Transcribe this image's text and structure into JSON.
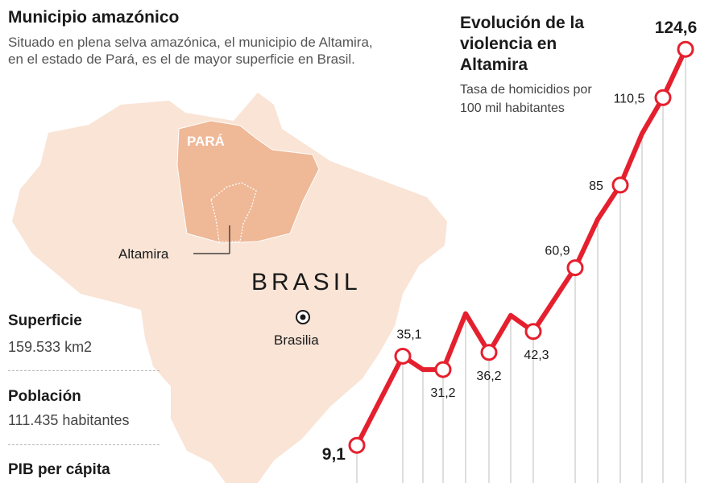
{
  "map_panel": {
    "title": "Municipio amazónico",
    "subtitle": "Situado en plena selva amazónica, el municipio de Altamira, en el estado de Pará, es el de mayor superficie en Brasil.",
    "state_label": "PARÁ",
    "municipality_label": "Altamira",
    "country_label": "BRASIL",
    "capital_label": "Brasilia",
    "colors": {
      "country": "#f9e4d6",
      "state": "#efb897",
      "border": "#ffffff"
    }
  },
  "stats": [
    {
      "label": "Superficie",
      "value": "159.533 km2"
    },
    {
      "label": "Población",
      "value": "111.435 habitantes"
    },
    {
      "label": "PIB per cápita",
      "value": ""
    }
  ],
  "chart_data": {
    "type": "line",
    "title": "Evolución de la violencia en Altamira",
    "subtitle": "Tasa de homicidios por 100 mil habitantes",
    "color": "#e5202e",
    "points": [
      {
        "label": "9,1",
        "value": 9.1,
        "marker": true
      },
      {
        "label": "35,1",
        "value": 35.1,
        "marker": true
      },
      {
        "label": "",
        "value": 31.2,
        "marker": false
      },
      {
        "label": "31,2",
        "value": 31.2,
        "marker": true
      },
      {
        "label": "",
        "value": 47.5,
        "marker": false
      },
      {
        "label": "36,2",
        "value": 36.2,
        "marker": true
      },
      {
        "label": "",
        "value": 47.0,
        "marker": false
      },
      {
        "label": "42,3",
        "value": 42.3,
        "marker": true
      },
      {
        "label": "60,9",
        "value": 60.9,
        "marker": true
      },
      {
        "label": "",
        "value": 75.0,
        "marker": false
      },
      {
        "label": "85",
        "value": 85,
        "marker": true
      },
      {
        "label": "",
        "value": 100.0,
        "marker": false
      },
      {
        "label": "110,5",
        "value": 110.5,
        "marker": true
      },
      {
        "label": "124,6",
        "value": 124.6,
        "marker": true
      }
    ]
  }
}
